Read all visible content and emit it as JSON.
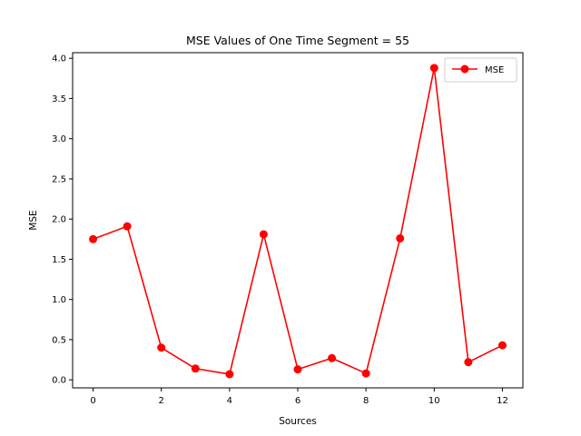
{
  "chart_data": {
    "type": "line",
    "title": "MSE Values of One Time Segment = 55",
    "xlabel": "Sources",
    "ylabel": "MSE",
    "xlim": [
      -0.6,
      12.6
    ],
    "ylim": [
      -0.1,
      4.07
    ],
    "xticks": [
      0,
      2,
      4,
      6,
      8,
      10,
      12
    ],
    "yticks": [
      0.0,
      0.5,
      1.0,
      1.5,
      2.0,
      2.5,
      3.0,
      3.5,
      4.0
    ],
    "grid": false,
    "legend_position": "top-right",
    "series": [
      {
        "name": "MSE",
        "color": "#ff0000",
        "marker": "circle",
        "x": [
          0,
          1,
          2,
          3,
          4,
          5,
          6,
          7,
          8,
          9,
          10,
          11,
          12
        ],
        "y": [
          1.75,
          1.91,
          0.4,
          0.14,
          0.07,
          1.81,
          0.13,
          0.27,
          0.08,
          1.76,
          3.88,
          0.22,
          0.43
        ]
      }
    ]
  }
}
